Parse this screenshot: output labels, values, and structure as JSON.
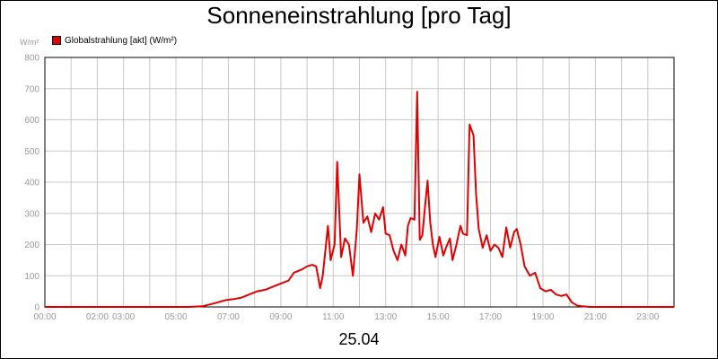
{
  "chart_data": {
    "type": "line",
    "title": "Sonneneinstrahlung [pro Tag]",
    "ylabel": "W/m²",
    "xlabel": "25.04",
    "ylim": [
      0,
      800
    ],
    "yticks": [
      0,
      100,
      200,
      300,
      400,
      500,
      600,
      700,
      800
    ],
    "xlim_hours": [
      0,
      24
    ],
    "xtick_hours": [
      0,
      2,
      3,
      5,
      7,
      9,
      11,
      13,
      15,
      17,
      19,
      21,
      23
    ],
    "xtick_labels": [
      "00:00",
      "02:00",
      "03:00",
      "05:00",
      "07:00",
      "09:00",
      "11:00",
      "13:00",
      "15:00",
      "17:00",
      "19:00",
      "21:00",
      "23:00"
    ],
    "grid": true,
    "legend_position": "top-left",
    "line_color": "#e00000",
    "series": [
      {
        "name": "Globalstrahlung [akt] (W/m²)",
        "x_hours": [
          0,
          5.5,
          6.0,
          6.3,
          6.6,
          6.9,
          7.2,
          7.5,
          7.8,
          8.1,
          8.4,
          8.7,
          9.0,
          9.3,
          9.5,
          9.8,
          10.0,
          10.2,
          10.35,
          10.5,
          10.6,
          10.8,
          10.9,
          11.05,
          11.15,
          11.3,
          11.45,
          11.6,
          11.75,
          11.9,
          12.0,
          12.15,
          12.3,
          12.45,
          12.6,
          12.75,
          12.9,
          13.0,
          13.15,
          13.3,
          13.45,
          13.6,
          13.75,
          13.85,
          13.95,
          14.1,
          14.2,
          14.3,
          14.4,
          14.5,
          14.6,
          14.7,
          14.8,
          14.9,
          15.05,
          15.2,
          15.3,
          15.45,
          15.55,
          15.7,
          15.85,
          15.95,
          16.1,
          16.2,
          16.35,
          16.45,
          16.55,
          16.7,
          16.85,
          17.0,
          17.15,
          17.3,
          17.45,
          17.6,
          17.75,
          17.9,
          18.0,
          18.15,
          18.3,
          18.5,
          18.7,
          18.9,
          19.1,
          19.3,
          19.5,
          19.7,
          19.9,
          20.1,
          20.3,
          20.5,
          20.8,
          21.2,
          24
        ],
        "values": [
          0,
          0,
          2,
          8,
          15,
          22,
          25,
          30,
          40,
          50,
          55,
          65,
          75,
          85,
          110,
          120,
          130,
          135,
          130,
          60,
          100,
          260,
          150,
          200,
          465,
          160,
          220,
          200,
          100,
          250,
          425,
          270,
          290,
          240,
          300,
          280,
          320,
          235,
          230,
          180,
          150,
          200,
          165,
          260,
          285,
          280,
          690,
          215,
          230,
          320,
          405,
          270,
          200,
          160,
          225,
          165,
          190,
          220,
          150,
          200,
          260,
          235,
          230,
          585,
          550,
          360,
          250,
          190,
          230,
          180,
          200,
          190,
          160,
          255,
          190,
          240,
          250,
          200,
          130,
          100,
          110,
          60,
          50,
          55,
          40,
          35,
          40,
          15,
          5,
          2,
          0,
          0,
          0
        ]
      }
    ]
  }
}
